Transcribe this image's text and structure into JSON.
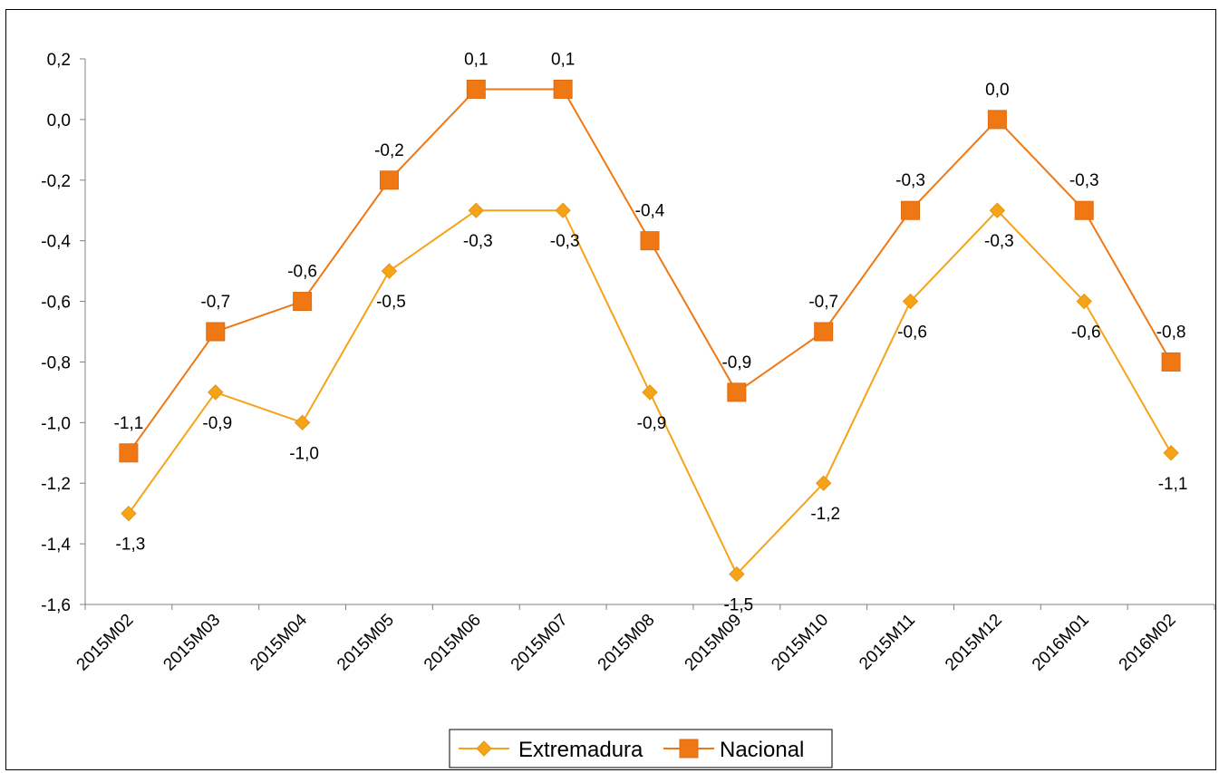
{
  "chart_data": {
    "type": "line",
    "categories": [
      "2015M02",
      "2015M03",
      "2015M04",
      "2015M05",
      "2015M06",
      "2015M07",
      "2015M08",
      "2015M09",
      "2015M10",
      "2015M11",
      "2015M12",
      "2016M01",
      "2016M02"
    ],
    "series": [
      {
        "name": "Extremadura",
        "values": [
          -1.3,
          -0.9,
          -1.0,
          -0.5,
          -0.3,
          -0.3,
          -0.9,
          -1.5,
          -1.2,
          -0.6,
          -0.3,
          -0.6,
          -1.1
        ],
        "labels": [
          "-1,3",
          "-0,9",
          "-1,0",
          "-0,5",
          "-0,3",
          "-0,3",
          "-0,9",
          "-1,5",
          "-1,2",
          "-0,6",
          "-0,3",
          "-0,6",
          "-1,1"
        ],
        "color": "#F5A318",
        "marker": "diamond"
      },
      {
        "name": "Nacional",
        "values": [
          -1.1,
          -0.7,
          -0.6,
          -0.2,
          0.1,
          0.1,
          -0.4,
          -0.9,
          -0.7,
          -0.3,
          0.0,
          -0.3,
          -0.8
        ],
        "labels": [
          "-1,1",
          "-0,7",
          "-0,6",
          "-0,2",
          "0,1",
          "0,1",
          "-0,4",
          "-0,9",
          "-0,7",
          "-0,3",
          "0,0",
          "-0,3",
          "-0,8"
        ],
        "color": "#F07814",
        "marker": "square"
      }
    ],
    "ylim": [
      -1.6,
      0.2
    ],
    "yticks": [
      0.2,
      0.0,
      -0.2,
      -0.4,
      -0.6,
      -0.8,
      -1.0,
      -1.2,
      -1.4,
      -1.6
    ],
    "ytick_labels": [
      "0,2",
      "0,0",
      "-0,2",
      "-0,4",
      "-0,6",
      "-0,8",
      "-1,0",
      "-1,2",
      "-1,4",
      "-1,6"
    ],
    "grid": false,
    "legend_position": "bottom-center"
  }
}
